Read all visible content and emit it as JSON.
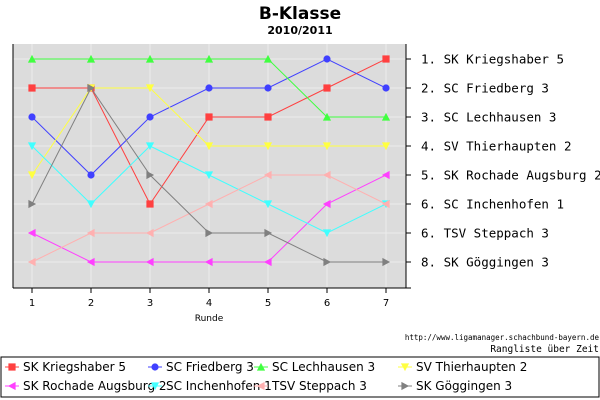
{
  "chart_data": {
    "type": "line",
    "title": "B-Klasse",
    "subtitle": "2010/2011",
    "xlabel": "Runde",
    "x": [
      1,
      2,
      3,
      4,
      5,
      6,
      7
    ],
    "ylim": [
      1,
      8
    ],
    "y_inverted": true,
    "grid": true,
    "final_ranking_labels": [
      "1. SK Kriegshaber 5",
      "2. SC Friedberg 3",
      "3. SC Lechhausen 3",
      "4. SV Thierhaupten 2",
      "5. SK Rochade Augsburg 2",
      "6. SC Inchenhofen 1",
      "6. TSV Steppach 3",
      "8. SK Göggingen 3"
    ],
    "series": [
      {
        "name": "SK Kriegshaber 5",
        "color": "#ff4040",
        "marker": "square",
        "values": [
          2,
          2,
          6,
          3,
          3,
          2,
          1
        ]
      },
      {
        "name": "SC Friedberg 3",
        "color": "#4040ff",
        "marker": "circle",
        "values": [
          3,
          5,
          3,
          2,
          2,
          1,
          2
        ]
      },
      {
        "name": "SC Lechhausen 3",
        "color": "#40ff40",
        "marker": "triangle-up",
        "values": [
          1,
          1,
          1,
          1,
          1,
          3,
          3
        ]
      },
      {
        "name": "SV Thierhaupten 2",
        "color": "#ffff40",
        "marker": "triangle-down",
        "values": [
          5,
          2,
          2,
          4,
          4,
          4,
          4
        ]
      },
      {
        "name": "SK Rochade Augsburg 2",
        "color": "#ff40ff",
        "marker": "triangle-left",
        "values": [
          7,
          8,
          8,
          8,
          8,
          6,
          5
        ]
      },
      {
        "name": "SC Inchenhofen 1",
        "color": "#40ffff",
        "marker": "triangle-down",
        "values": [
          4,
          6,
          4,
          5,
          6,
          7,
          6
        ]
      },
      {
        "name": "TSV Steppach 3",
        "color": "#ffb0b0",
        "marker": "triangle-left",
        "values": [
          8,
          7,
          7,
          6,
          5,
          5,
          6
        ]
      },
      {
        "name": "SK Göggingen 3",
        "color": "#808080",
        "marker": "triangle-right",
        "values": [
          6,
          2,
          5,
          7,
          7,
          8,
          8
        ]
      }
    ],
    "legend": "bottom"
  },
  "source": "http://www.ligamanager.schachbund-bayern.de",
  "note": "Rangliste über Zeit"
}
